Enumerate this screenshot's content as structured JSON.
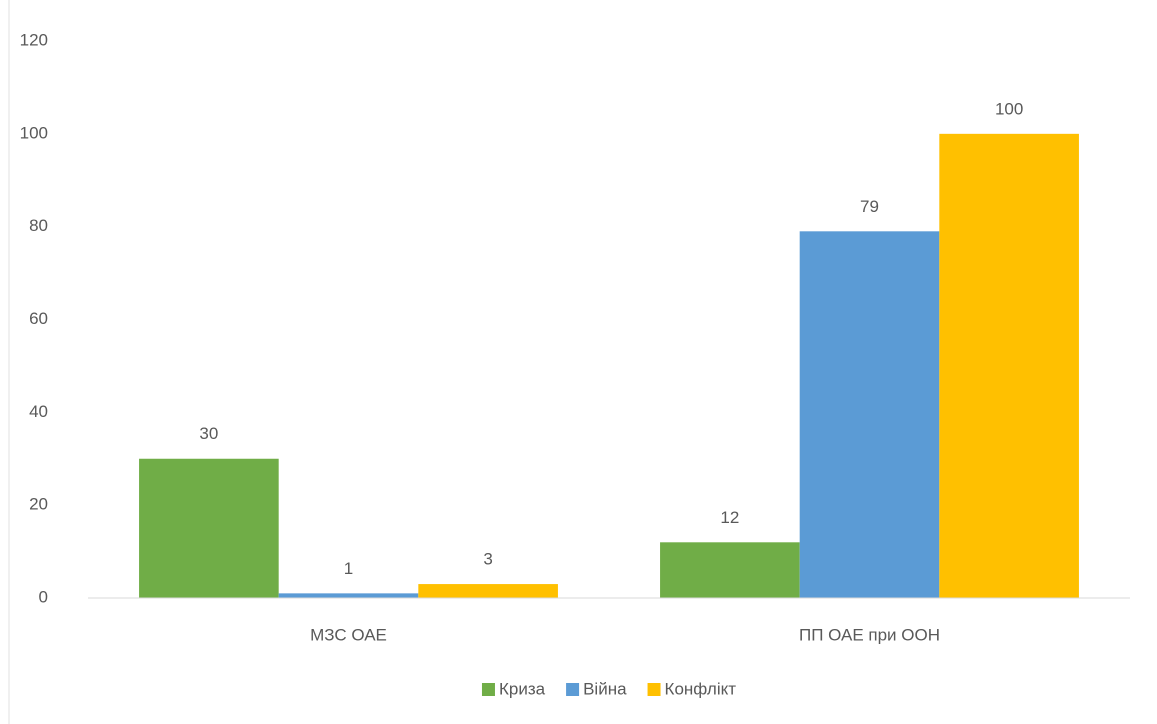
{
  "chart_data": {
    "type": "bar",
    "categories": [
      "МЗС ОАЕ",
      "ПП ОАЕ при ООН"
    ],
    "series": [
      {
        "name": "Криза",
        "color": "#70ad47",
        "values": [
          30,
          12
        ]
      },
      {
        "name": "Війна",
        "color": "#5b9bd5",
        "values": [
          1,
          79
        ]
      },
      {
        "name": "Конфлікт",
        "color": "#ffc000",
        "values": [
          3,
          100
        ]
      }
    ],
    "ylim": [
      0,
      120
    ],
    "yticks": [
      0,
      20,
      40,
      60,
      80,
      100,
      120
    ],
    "grid": false,
    "legend": "bottom"
  }
}
